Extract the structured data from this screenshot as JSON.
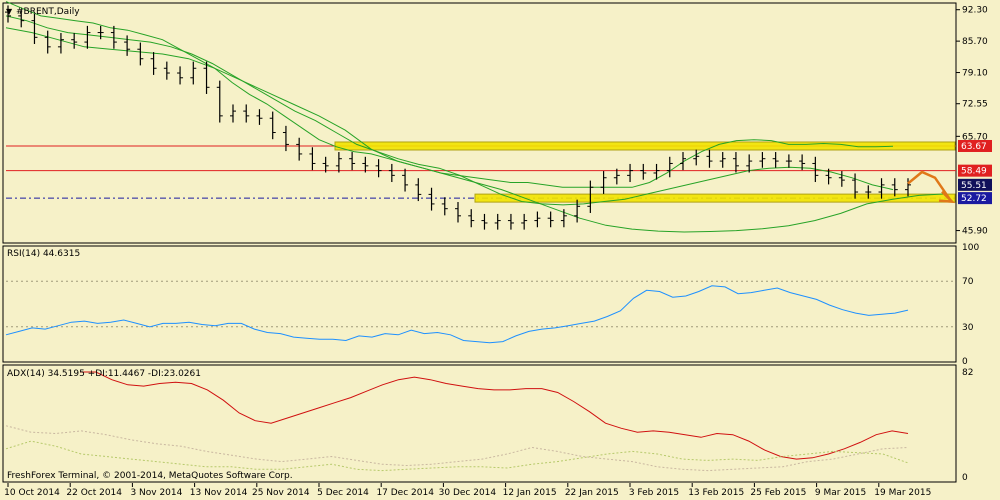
{
  "colors": {
    "background": "#f6f1c8",
    "grid": "#c9c4a0",
    "price_bar": "#000000",
    "bands": "#27a327",
    "resistance_line": "#e02020",
    "zone_fill": "#f2e400",
    "zone_stroke": "#a89a00",
    "support_line": "#1a1aa0",
    "rsi": "#1e90ff",
    "adx": "#d01010",
    "di_plus": "#b6c96a",
    "di_minus": "#c9b7a0",
    "arrow": "#e07818",
    "tag_red": "#e02020",
    "tag_navy": "#10105a",
    "tag_blue": "#1a1aa0"
  },
  "main": {
    "title": "#BRENT,Daily",
    "collapse_icon": "triangle-down-icon",
    "y_ticks": [
      "92.30",
      "85.70",
      "79.10",
      "72.55",
      "65.70",
      "45.90"
    ],
    "level_tags": [
      "63.67",
      "58.49",
      "55.51",
      "52.72"
    ]
  },
  "rsi": {
    "label": "RSI(14) 44.6315",
    "y_ticks": [
      "100",
      "70",
      "30",
      "0"
    ]
  },
  "adx": {
    "label": "ADX(14) 34.5195 +DI:11.4467 -DI:23.0261",
    "y_ticks": [
      "82",
      "0"
    ]
  },
  "copyright": "FreshForex Terminal, © 2001-2014, MetaQuotes Software Corp.",
  "x_axis": {
    "labels": [
      "10 Oct 2014",
      "22 Oct 2014",
      "3 Nov 2014",
      "13 Nov 2014",
      "25 Nov 2014",
      "5 Dec 2014",
      "17 Dec 2014",
      "30 Dec 2014",
      "12 Jan 2015",
      "22 Jan 2015",
      "3 Feb 2015",
      "13 Feb 2015",
      "25 Feb 2015",
      "9 Mar 2015",
      "19 Mar 2015"
    ]
  },
  "chart_data": [
    {
      "type": "ohlc",
      "title": "#BRENT,Daily",
      "y_range": [
        43.5,
        93.5
      ],
      "x": [
        "10 Oct 2014",
        "22 Oct 2014",
        "3 Nov 2014",
        "13 Nov 2014",
        "25 Nov 2014",
        "5 Dec 2014",
        "17 Dec 2014",
        "30 Dec 2014",
        "12 Jan 2015",
        "22 Jan 2015",
        "3 Feb 2015",
        "13 Feb 2015",
        "25 Feb 2015",
        "9 Mar 2015",
        "19 Mar 2015"
      ],
      "close_approx": [
        91,
        90,
        86.5,
        84.5,
        86,
        85.5,
        87.5,
        87.5,
        85.5,
        84,
        82,
        80,
        79,
        78,
        80,
        76,
        70,
        71,
        70,
        69.5,
        66.5,
        64,
        62,
        60,
        59.5,
        61,
        60,
        59.5,
        58.5,
        57.5,
        55.5,
        53.5,
        51.5,
        50.5,
        49,
        48,
        47.5,
        48,
        47.5,
        48,
        48.5,
        48,
        49,
        51,
        55,
        57,
        57.5,
        58.5,
        58,
        58.5,
        60,
        61,
        61.5,
        60.5,
        61,
        59.5,
        60.5,
        61,
        60.5,
        60.5,
        60,
        57.5,
        57,
        56.5,
        54,
        54,
        55.5,
        54.5,
        55.5
      ],
      "levels": {
        "resistance": 63.67,
        "mid": 58.49,
        "last": 55.51,
        "support": 52.72
      },
      "bands_upper_approx": [
        94,
        92.5,
        91,
        90.5,
        90,
        89.5,
        88.5,
        88,
        87,
        86,
        84,
        82,
        80,
        77,
        74.5,
        72.5,
        70,
        67.5,
        65,
        63.5,
        62.5,
        62,
        61,
        60,
        59,
        58,
        57.5,
        57,
        56.5,
        56,
        56,
        55.5,
        55,
        55,
        55,
        55,
        55,
        56,
        58,
        60.5,
        62.5,
        64,
        64.8,
        65,
        64.8,
        64,
        64,
        64.2,
        64,
        63.5,
        63.5,
        63.6
      ],
      "bands_middle_approx": [
        91,
        90,
        88.5,
        87.5,
        87,
        86.5,
        86,
        85.5,
        84.5,
        83,
        81,
        78.5,
        76,
        73.5,
        71,
        69,
        66.5,
        64,
        62.5,
        61,
        59.8,
        59,
        57.5,
        55.5,
        53.5,
        52,
        51.5,
        51.3,
        51.5,
        52,
        52.5,
        53.5,
        54.5,
        55.5,
        56.5,
        57.5,
        58.5,
        59,
        59.2,
        59,
        58.2,
        57,
        55.5,
        54.5
      ],
      "bands_lower_approx": [
        88.5,
        87.5,
        86,
        84.5,
        84,
        83.5,
        83,
        82,
        80,
        77.5,
        75,
        72.5,
        70,
        67,
        63,
        60.5,
        59,
        57.5,
        56,
        54.5,
        52.5,
        50.5,
        48.5,
        47,
        46.2,
        45.8,
        45.6,
        45.7,
        45.9,
        46.3,
        46.9,
        48,
        49.5,
        51.5,
        52.5,
        53.3,
        53.6
      ],
      "projection": [
        55.8,
        58.2,
        57,
        52.4
      ]
    },
    {
      "type": "line",
      "title": "RSI(14) 44.6315",
      "y_range": [
        0,
        100
      ],
      "levels": [
        70,
        30
      ],
      "series": [
        {
          "name": "RSI(14)",
          "values": [
            23,
            26,
            29,
            28,
            31,
            34,
            35,
            33,
            34,
            36,
            33,
            30,
            33,
            33,
            34,
            32,
            31,
            33,
            33,
            28,
            25,
            24,
            21,
            20,
            19,
            19,
            18,
            22,
            21,
            24,
            23,
            27,
            24,
            25,
            23,
            18,
            17,
            16,
            17,
            22,
            26,
            28,
            29,
            31,
            33,
            35,
            39,
            44,
            55,
            62,
            61,
            56,
            57,
            61,
            66,
            65,
            59,
            60,
            62,
            64,
            60,
            57,
            54,
            49,
            45,
            42,
            40,
            41,
            42,
            44.63
          ]
        }
      ]
    },
    {
      "type": "line",
      "title": "ADX(14) 34.5195 +DI:11.4467 -DI:23.0261",
      "y_range": [
        0,
        82
      ],
      "series": [
        {
          "name": "ADX(14)",
          "values": [
            82,
            82,
            76,
            72,
            71,
            73,
            74,
            73,
            68,
            60,
            50,
            44,
            42,
            46,
            50,
            54,
            58,
            62,
            67,
            72,
            76,
            78,
            76,
            73,
            71,
            69,
            68,
            68,
            69,
            69,
            66,
            59,
            51,
            42,
            38,
            35,
            36,
            35,
            33,
            31,
            34,
            33,
            28,
            21,
            16,
            14,
            15,
            18,
            22,
            27,
            33,
            36,
            34
          ]
        },
        {
          "name": "+DI",
          "values": [
            22,
            28,
            24,
            18,
            16,
            14,
            12,
            10,
            8,
            8,
            6,
            6,
            8,
            10,
            6,
            5,
            6,
            7,
            8,
            8,
            7,
            10,
            12,
            15,
            18,
            20,
            18,
            14,
            13,
            14,
            13,
            16,
            18,
            20,
            19,
            18,
            11
          ]
        },
        {
          "name": "-DI",
          "values": [
            40,
            35,
            34,
            36,
            33,
            29,
            26,
            24,
            20,
            17,
            14,
            12,
            14,
            16,
            13,
            10,
            9,
            10,
            12,
            14,
            18,
            23,
            20,
            16,
            14,
            12,
            8,
            6,
            5,
            6,
            7,
            8,
            12,
            14,
            18,
            22,
            23
          ]
        }
      ]
    }
  ]
}
